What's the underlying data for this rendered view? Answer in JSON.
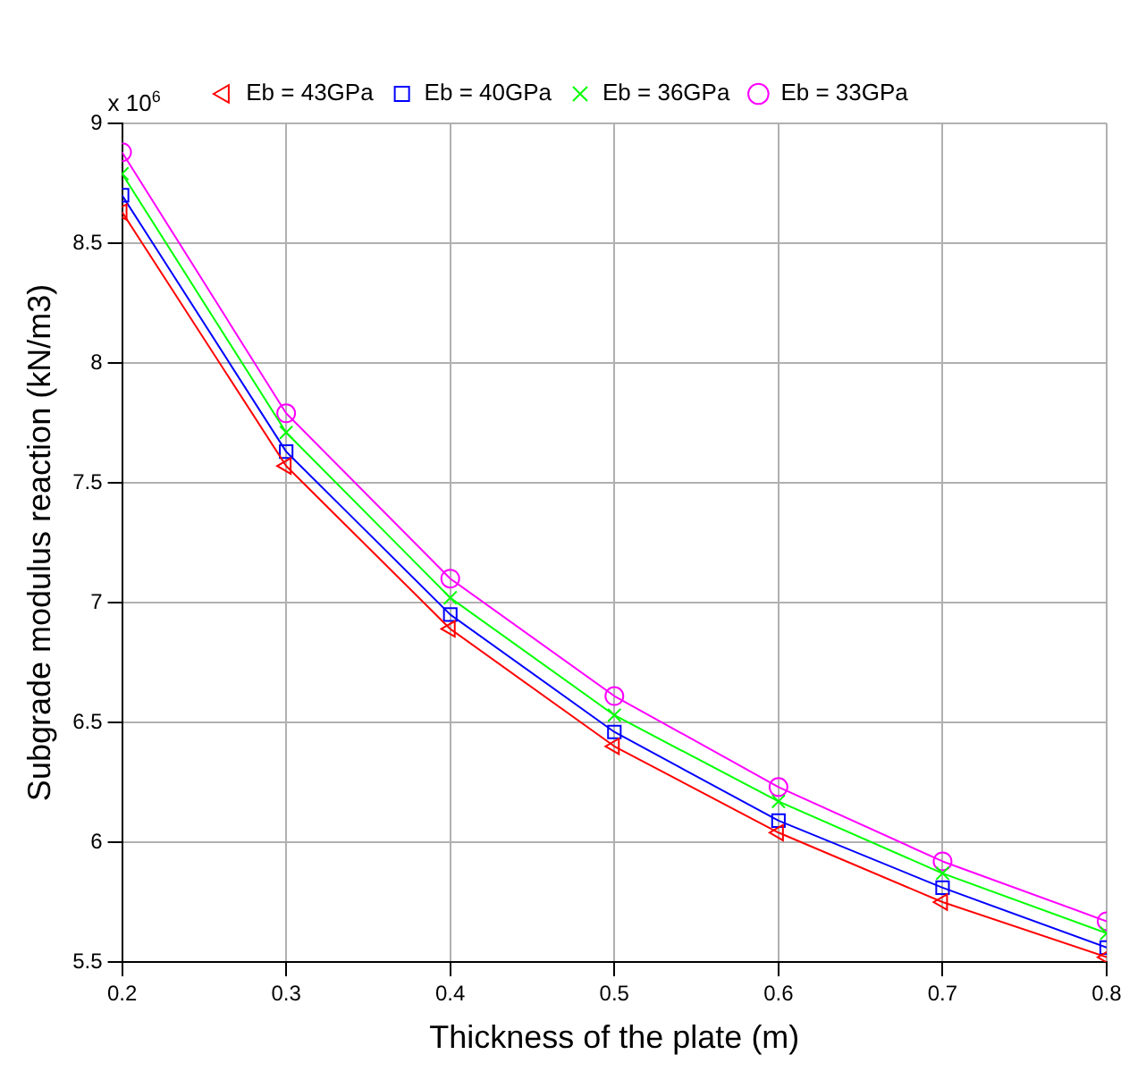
{
  "chart_data": {
    "type": "line",
    "xlabel": "Thickness of the plate (m)",
    "ylabel": "Subgrade modulus reaction (kN/m3)",
    "annotations": [
      "x 10$^{6}$"
    ],
    "x": [
      0.2,
      0.3,
      0.4,
      0.5,
      0.6,
      0.7,
      0.8
    ],
    "xlim": [
      0.2,
      0.8
    ],
    "xticks": [
      0.2,
      0.3,
      0.4,
      0.5,
      0.6,
      0.7,
      0.8
    ],
    "ylim": [
      5.5,
      9
    ],
    "yticks": [
      5.5,
      6,
      6.5,
      7,
      7.5,
      8,
      8.5,
      9
    ],
    "grid": true,
    "legend": "top",
    "line_style": "solid",
    "series": [
      {
        "name": "Eb = 43GPa",
        "color": "#ff0000",
        "marker": "triangle",
        "values": [
          8.63,
          7.57,
          6.89,
          6.4,
          6.04,
          5.75,
          5.52
        ]
      },
      {
        "name": "Eb = 40GPa",
        "color": "#0000ff",
        "marker": "square",
        "values": [
          8.7,
          7.63,
          6.95,
          6.46,
          6.09,
          5.81,
          5.56
        ]
      },
      {
        "name": "Eb = 36GPa",
        "color": "#00ff00",
        "marker": "cross",
        "values": [
          8.79,
          7.71,
          7.02,
          6.53,
          6.17,
          5.87,
          5.62
        ]
      },
      {
        "name": "Eb = 33GPa",
        "color": "#ff00ff",
        "marker": "circle",
        "values": [
          8.88,
          7.79,
          7.1,
          6.61,
          6.23,
          5.92,
          5.67
        ]
      }
    ]
  }
}
